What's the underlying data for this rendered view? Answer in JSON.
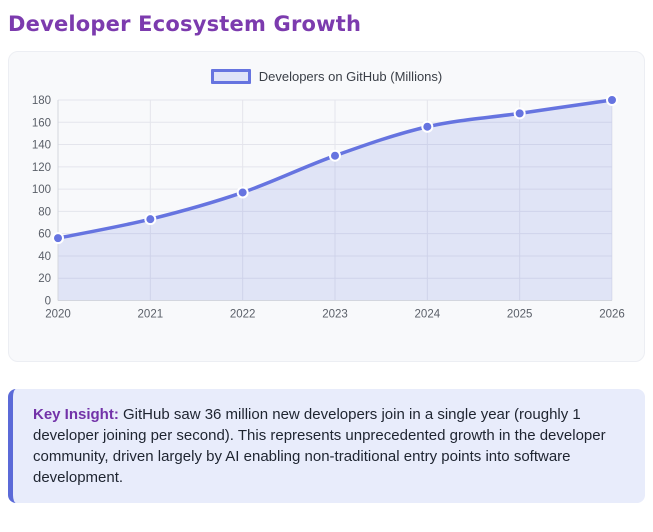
{
  "page": {
    "title": "Developer Ecosystem Growth"
  },
  "colors": {
    "title": "#7c3bae",
    "line": "#6674e0",
    "point_fill": "#6674e0",
    "point_stroke": "#ffffff",
    "area_fill": "rgba(102,116,224,0.16)",
    "grid": "#e4e5ec",
    "axis_line": "#d3d6de",
    "tick_label": "#5a5f68",
    "legend_text": "#3a3f47",
    "insight_bg": "#e8ecfb",
    "insight_border": "#5b6ad8",
    "insight_label": "#7232a8"
  },
  "chart_data": {
    "type": "line",
    "title": "",
    "legend_position": "top",
    "grid": true,
    "area_fill": true,
    "smooth": true,
    "categories": [
      "2020",
      "2021",
      "2022",
      "2023",
      "2024",
      "2025",
      "2026"
    ],
    "series": [
      {
        "name": "Developers on GitHub (Millions)",
        "values": [
          56,
          73,
          97,
          130,
          156,
          168,
          180
        ]
      }
    ],
    "xlabel": "",
    "ylabel": "",
    "ylim": [
      0,
      180
    ],
    "y_ticks": [
      0,
      20,
      40,
      60,
      80,
      100,
      120,
      140,
      160,
      180
    ]
  },
  "insight": {
    "label": "Key Insight:",
    "text": "GitHub saw 36 million new developers join in a single year (roughly 1 developer joining per second). This represents unprecedented growth in the developer community, driven largely by AI enabling non-traditional entry points into software development."
  }
}
